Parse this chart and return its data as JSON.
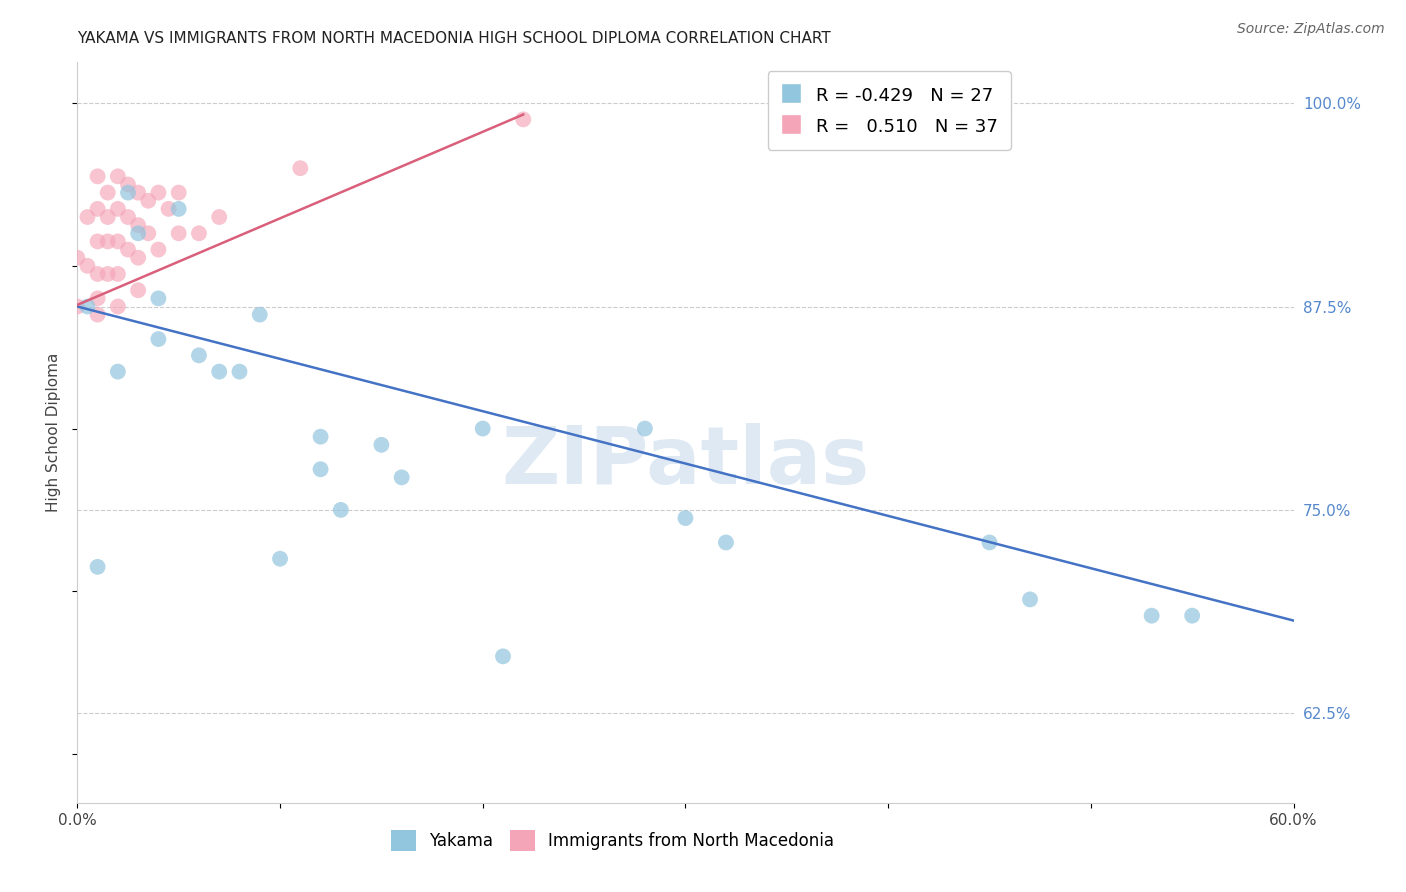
{
  "title": "YAKAMA VS IMMIGRANTS FROM NORTH MACEDONIA HIGH SCHOOL DIPLOMA CORRELATION CHART",
  "source": "Source: ZipAtlas.com",
  "ylabel": "High School Diploma",
  "xlabel": "",
  "watermark": "ZIPatlas",
  "xlim": [
    0.0,
    0.6
  ],
  "ylim": [
    0.57,
    1.025
  ],
  "xticks": [
    0.0,
    0.1,
    0.2,
    0.3,
    0.4,
    0.5,
    0.6
  ],
  "xticklabels": [
    "0.0%",
    "",
    "",
    "",
    "",
    "",
    "60.0%"
  ],
  "yticks_right": [
    0.625,
    0.75,
    0.875,
    1.0
  ],
  "ytick_labels_right": [
    "62.5%",
    "75.0%",
    "87.5%",
    "100.0%"
  ],
  "legend_r_blue": "-0.429",
  "legend_n_blue": "27",
  "legend_r_pink": "0.510",
  "legend_n_pink": "37",
  "blue_color": "#92c5de",
  "pink_color": "#f4a5b8",
  "blue_line_color": "#4472c4",
  "pink_line_color": "#d95f7a",
  "blue_scatter_x": [
    0.005,
    0.01,
    0.02,
    0.025,
    0.03,
    0.04,
    0.04,
    0.05,
    0.07,
    0.08,
    0.09,
    0.1,
    0.12,
    0.12,
    0.13,
    0.2,
    0.21,
    0.28,
    0.32,
    0.47,
    0.53,
    0.55,
    0.06,
    0.15,
    0.16,
    0.3,
    0.45
  ],
  "blue_scatter_y": [
    0.875,
    0.715,
    0.835,
    0.945,
    0.92,
    0.88,
    0.855,
    0.935,
    0.835,
    0.835,
    0.87,
    0.72,
    0.795,
    0.775,
    0.75,
    0.8,
    0.66,
    0.8,
    0.73,
    0.695,
    0.685,
    0.685,
    0.845,
    0.79,
    0.77,
    0.745,
    0.73
  ],
  "pink_scatter_x": [
    0.0,
    0.0,
    0.005,
    0.005,
    0.01,
    0.01,
    0.01,
    0.01,
    0.01,
    0.015,
    0.015,
    0.015,
    0.015,
    0.02,
    0.02,
    0.02,
    0.02,
    0.025,
    0.025,
    0.025,
    0.03,
    0.03,
    0.03,
    0.03,
    0.035,
    0.035,
    0.04,
    0.04,
    0.045,
    0.05,
    0.05,
    0.06,
    0.07,
    0.11,
    0.22,
    0.01,
    0.02
  ],
  "pink_scatter_y": [
    0.875,
    0.905,
    0.93,
    0.9,
    0.955,
    0.935,
    0.915,
    0.895,
    0.87,
    0.945,
    0.93,
    0.915,
    0.895,
    0.955,
    0.935,
    0.915,
    0.875,
    0.95,
    0.93,
    0.91,
    0.945,
    0.925,
    0.905,
    0.885,
    0.94,
    0.92,
    0.945,
    0.91,
    0.935,
    0.945,
    0.92,
    0.92,
    0.93,
    0.96,
    0.99,
    0.88,
    0.895
  ],
  "blue_line_x": [
    0.0,
    0.6
  ],
  "blue_line_y": [
    0.875,
    0.682
  ],
  "pink_line_x": [
    0.0,
    0.22
  ],
  "pink_line_y": [
    0.876,
    0.993
  ],
  "title_fontsize": 11,
  "axis_label_fontsize": 11,
  "tick_fontsize": 11,
  "legend_fontsize": 13,
  "background_color": "#ffffff",
  "grid_color": "#cccccc"
}
